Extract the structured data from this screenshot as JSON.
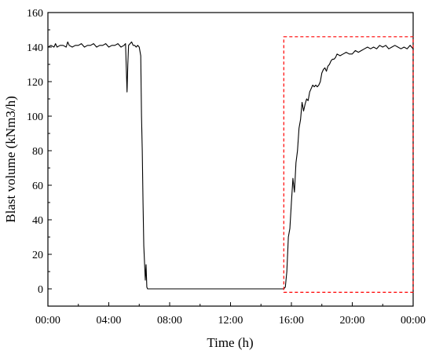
{
  "chart_data": {
    "type": "line",
    "title": "",
    "xlabel": "Time (h)",
    "ylabel": "Blast volume (kNm3/h)",
    "x_unit": "hours",
    "xlim": [
      0,
      24
    ],
    "ylim": [
      -10,
      160
    ],
    "x_ticks": [
      0,
      4,
      8,
      12,
      16,
      20,
      24
    ],
    "x_tick_labels": [
      "00:00",
      "04:00",
      "08:00",
      "12:00",
      "16:00",
      "20:00",
      "00:00"
    ],
    "y_ticks": [
      0,
      20,
      40,
      60,
      80,
      100,
      120,
      140,
      160
    ],
    "y_tick_labels": [
      "0",
      "20",
      "40",
      "60",
      "80",
      "100",
      "120",
      "140",
      "160"
    ],
    "grid": false,
    "legend": "none",
    "line_color": "#000000",
    "highlight_color": "#ff0000",
    "series": [
      {
        "x": [
          0,
          0.2,
          0.4,
          0.5,
          0.6,
          0.8,
          1.0,
          1.2,
          1.3,
          1.4,
          1.6,
          1.8,
          2.0,
          2.2,
          2.4,
          2.6,
          2.8,
          3.0,
          3.2,
          3.4,
          3.6,
          3.8,
          4.0,
          4.2,
          4.4,
          4.6,
          4.8,
          5.0,
          5.1,
          5.15,
          5.2,
          5.25,
          5.3,
          5.4,
          5.5,
          5.6,
          5.7,
          5.8,
          5.9,
          6.0,
          6.1,
          6.15,
          6.2,
          6.25,
          6.3,
          6.4,
          6.45,
          6.5,
          6.55,
          6.6,
          6.7,
          8.0,
          10.0,
          12.0,
          14.0,
          15.0,
          15.4,
          15.5,
          15.6,
          15.7,
          15.8,
          15.9,
          16.0,
          16.1,
          16.2,
          16.3,
          16.4,
          16.5,
          16.6,
          16.7,
          16.8,
          16.9,
          17.0,
          17.1,
          17.2,
          17.3,
          17.4,
          17.5,
          17.6,
          17.7,
          17.8,
          17.9,
          18.0,
          18.1,
          18.2,
          18.3,
          18.4,
          18.5,
          18.6,
          18.7,
          18.8,
          18.9,
          19.0,
          19.2,
          19.4,
          19.6,
          19.8,
          20.0,
          20.2,
          20.4,
          20.6,
          20.8,
          21.0,
          21.2,
          21.4,
          21.6,
          21.8,
          22.0,
          22.2,
          22.4,
          22.6,
          22.8,
          23.0,
          23.2,
          23.4,
          23.6,
          23.8,
          24.0
        ],
        "y": [
          140,
          141,
          140,
          142,
          140,
          141,
          141,
          140,
          143,
          141,
          140,
          141,
          141,
          142,
          140,
          141,
          141,
          142,
          140,
          141,
          141,
          142,
          140,
          141,
          141,
          142,
          140,
          141,
          142,
          128,
          114,
          130,
          141,
          142,
          143,
          141,
          141,
          140,
          141,
          140,
          135,
          100,
          80,
          50,
          25,
          5,
          14,
          1,
          0,
          0,
          0,
          0,
          0,
          0,
          0,
          0,
          0,
          0,
          1,
          10,
          30,
          35,
          50,
          64,
          56,
          73,
          80,
          93,
          98,
          108,
          103,
          107,
          110,
          109,
          114,
          116,
          118,
          117,
          118,
          117,
          118,
          120,
          125,
          127,
          128,
          126,
          129,
          130,
          132,
          133,
          133,
          134,
          136,
          135,
          136,
          137,
          136,
          136,
          138,
          137,
          138,
          139,
          140,
          139,
          140,
          139,
          141,
          140,
          141,
          139,
          140,
          141,
          140,
          139,
          140,
          139,
          141,
          139
        ]
      }
    ],
    "highlight_box": {
      "x": [
        15.5,
        24.0
      ],
      "y": [
        -2,
        146
      ]
    }
  }
}
